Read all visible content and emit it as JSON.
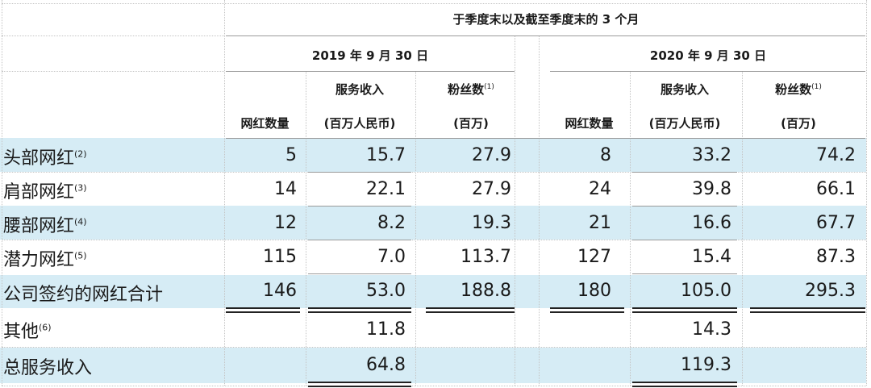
{
  "header": {
    "period_title": "于季度末以及截至季度末的 3 个月",
    "year_2019": "2019 年 9 月 30 日",
    "year_2020": "2020 年 9 月 30 日",
    "col_count": "网红数量",
    "col_revenue_line1": "服务收入",
    "col_revenue_line2": "(百万人民币)",
    "col_fans_line1": "粉丝数",
    "col_fans_note": "(1)",
    "col_fans_line2": "(百万)"
  },
  "rows": [
    {
      "label": "头部网红",
      "note": "(2)",
      "c2019": "5",
      "r2019": "15.7",
      "f2019": "27.9",
      "c2020": "8",
      "r2020": "33.2",
      "f2020": "74.2"
    },
    {
      "label": "肩部网红",
      "note": "(3)",
      "c2019": "14",
      "r2019": "22.1",
      "f2019": "27.9",
      "c2020": "24",
      "r2020": "39.8",
      "f2020": "66.1"
    },
    {
      "label": "腰部网红",
      "note": "(4)",
      "c2019": "12",
      "r2019": "8.2",
      "f2019": "19.3",
      "c2020": "21",
      "r2020": "16.6",
      "f2020": "67.7"
    },
    {
      "label": "潜力网红",
      "note": "(5)",
      "c2019": "115",
      "r2019": "7.0",
      "f2019": "113.7",
      "c2020": "127",
      "r2020": "15.4",
      "f2020": "87.3"
    },
    {
      "label": "公司签约的网红合计",
      "note": "",
      "c2019": "146",
      "r2019": "53.0",
      "f2019": "188.8",
      "c2020": "180",
      "r2020": "105.0",
      "f2020": "295.3"
    },
    {
      "label": "其他",
      "note": "(6)",
      "c2019": "",
      "r2019": "11.8",
      "f2019": "",
      "c2020": "",
      "r2020": "14.3",
      "f2020": ""
    },
    {
      "label": "总服务收入",
      "note": "",
      "c2019": "",
      "r2019": "64.8",
      "f2019": "",
      "c2020": "",
      "r2020": "119.3",
      "f2020": ""
    }
  ],
  "colors": {
    "band": "#d6ecf5"
  }
}
